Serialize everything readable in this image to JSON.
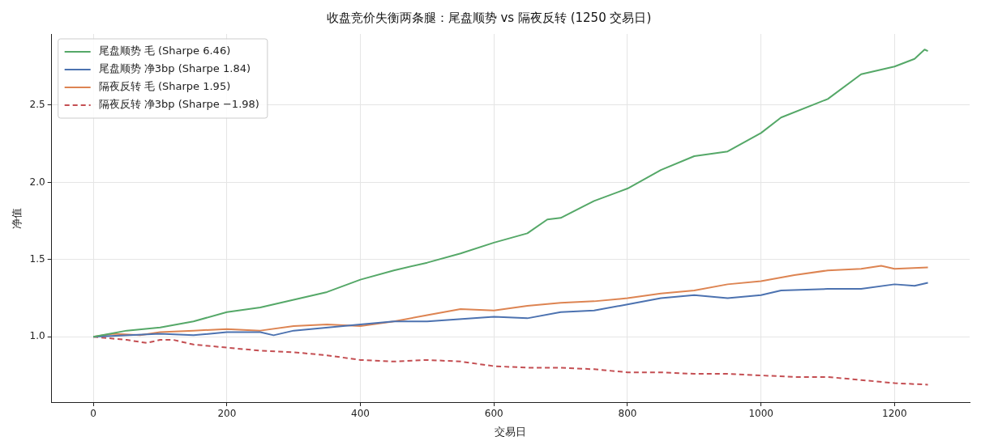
{
  "chart_data": {
    "type": "line",
    "title": "收盘竞价失衡两条腿：尾盘顺势 vs 隔夜反转 (1250 交易日)",
    "xlabel": "交易日",
    "ylabel": "净值",
    "xlim": [
      -62.5,
      1312.5
    ],
    "xticks": [
      0,
      200,
      400,
      600,
      800,
      1000,
      1200
    ],
    "ylim": [
      0.577,
      2.961
    ],
    "yticks": [
      {
        "value": 1,
        "label": "1.0"
      },
      {
        "value": 1.5,
        "label": "1.5"
      },
      {
        "value": 2,
        "label": "2.0"
      },
      {
        "value": 2.5,
        "label": "2.5"
      }
    ],
    "grid": true,
    "legend": "top left",
    "marker": "none",
    "series": [
      {
        "name": "尾盘顺势 毛 (Sharpe 6.46)",
        "color": "#55a868",
        "line_style": "solid",
        "x": [
          0,
          50,
          100,
          150,
          200,
          250,
          300,
          350,
          400,
          450,
          500,
          550,
          600,
          650,
          680,
          700,
          750,
          800,
          850,
          900,
          950,
          1000,
          1030,
          1100,
          1150,
          1200,
          1230,
          1245,
          1250
        ],
        "values": [
          1.0,
          1.04,
          1.06,
          1.1,
          1.16,
          1.19,
          1.24,
          1.29,
          1.37,
          1.43,
          1.48,
          1.54,
          1.61,
          1.67,
          1.76,
          1.77,
          1.88,
          1.96,
          2.08,
          2.17,
          2.2,
          2.32,
          2.42,
          2.54,
          2.7,
          2.75,
          2.8,
          2.86,
          2.85
        ]
      },
      {
        "name": "尾盘顺势 净3bp (Sharpe 1.84)",
        "color": "#4c72b0",
        "line_style": "solid",
        "x": [
          0,
          100,
          150,
          200,
          250,
          270,
          300,
          400,
          450,
          500,
          600,
          650,
          700,
          750,
          800,
          850,
          900,
          950,
          1000,
          1030,
          1100,
          1150,
          1200,
          1230,
          1250
        ],
        "values": [
          1.0,
          1.02,
          1.01,
          1.03,
          1.03,
          1.01,
          1.04,
          1.08,
          1.1,
          1.1,
          1.13,
          1.12,
          1.16,
          1.17,
          1.21,
          1.25,
          1.27,
          1.25,
          1.27,
          1.3,
          1.31,
          1.31,
          1.34,
          1.33,
          1.35
        ]
      },
      {
        "name": "隔夜反转 毛 (Sharpe 1.95)",
        "color": "#dd8452",
        "line_style": "solid",
        "x": [
          0,
          30,
          70,
          100,
          150,
          200,
          250,
          300,
          350,
          400,
          450,
          500,
          550,
          600,
          650,
          700,
          750,
          800,
          850,
          900,
          950,
          1000,
          1050,
          1100,
          1150,
          1180,
          1200,
          1250
        ],
        "values": [
          1.0,
          1.02,
          1.01,
          1.03,
          1.04,
          1.05,
          1.04,
          1.07,
          1.08,
          1.07,
          1.1,
          1.14,
          1.18,
          1.17,
          1.2,
          1.22,
          1.23,
          1.25,
          1.28,
          1.3,
          1.34,
          1.36,
          1.4,
          1.43,
          1.44,
          1.46,
          1.44,
          1.45
        ]
      },
      {
        "name": "隔夜反转 净3bp (Sharpe −1.98)",
        "color": "#c44e52",
        "line_style": "dashed",
        "x": [
          0,
          50,
          80,
          100,
          120,
          150,
          200,
          250,
          300,
          350,
          400,
          450,
          500,
          550,
          600,
          650,
          700,
          750,
          800,
          850,
          900,
          950,
          1000,
          1050,
          1100,
          1150,
          1200,
          1250
        ],
        "values": [
          1.0,
          0.98,
          0.96,
          0.98,
          0.98,
          0.95,
          0.93,
          0.91,
          0.9,
          0.88,
          0.85,
          0.84,
          0.85,
          0.84,
          0.81,
          0.8,
          0.8,
          0.79,
          0.77,
          0.77,
          0.76,
          0.76,
          0.75,
          0.74,
          0.74,
          0.72,
          0.7,
          0.69
        ]
      }
    ]
  }
}
